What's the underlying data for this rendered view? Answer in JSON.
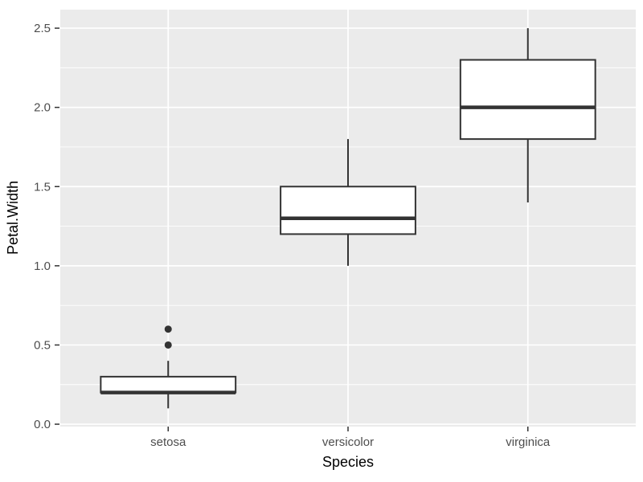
{
  "figure": {
    "background": "#FFFFFF"
  },
  "chart_data": {
    "type": "boxplot",
    "title": "",
    "xlabel": "Species",
    "ylabel": "Petal.Width",
    "categories": [
      "setosa",
      "versicolor",
      "virginica"
    ],
    "series": [
      {
        "name": "setosa",
        "min": 0.1,
        "q1": 0.2,
        "median": 0.2,
        "q3": 0.3,
        "max": 0.4,
        "outliers": [
          0.5,
          0.6
        ]
      },
      {
        "name": "versicolor",
        "min": 1.0,
        "q1": 1.2,
        "median": 1.3,
        "q3": 1.5,
        "max": 1.8,
        "outliers": []
      },
      {
        "name": "virginica",
        "min": 1.4,
        "q1": 1.8,
        "median": 2.0,
        "q3": 2.3,
        "max": 2.5,
        "outliers": []
      }
    ],
    "y_ticks": [
      0.0,
      0.5,
      1.0,
      1.5,
      2.0,
      2.5
    ],
    "y_tick_labels": [
      "0.0",
      "0.5",
      "1.0",
      "1.5",
      "2.0",
      "2.5"
    ],
    "y_minor_ticks": [
      0.25,
      0.75,
      1.25,
      1.75,
      2.25
    ],
    "ylim": [
      -0.015,
      2.617
    ],
    "grid": true,
    "legend": "none",
    "style": {
      "panel_background": "#EBEBEB",
      "grid_color": "#FFFFFF",
      "box_fill": "#FFFFFF",
      "box_stroke": "#333333",
      "median_stroke": "#333333",
      "whisker_stroke": "#333333",
      "outlier_color": "#333333",
      "tick_mark_color": "#333333",
      "tick_label_color": "#4D4D4D",
      "axis_title_color": "#000000"
    }
  }
}
